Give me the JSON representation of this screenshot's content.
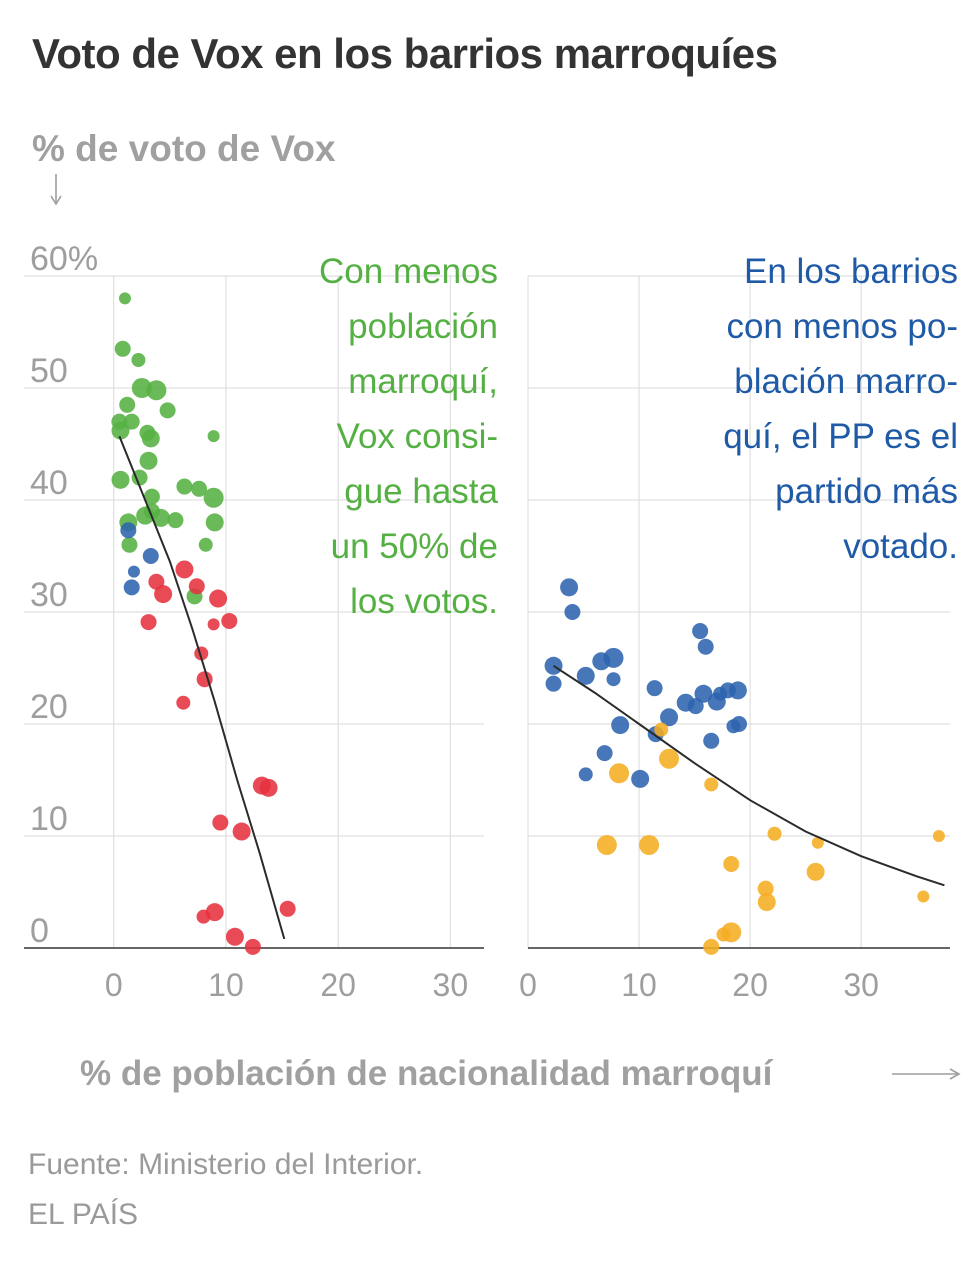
{
  "title": "Voto de Vox en los barrios marroquíes",
  "y_axis_title": "% de voto de Vox",
  "x_axis_title": "% de población de nacionalidad marroquí",
  "source": "Fuente: Ministerio del Interior.",
  "brand": "EL PAÍS",
  "colors": {
    "green": "#55b043",
    "red": "#e5323f",
    "blue": "#2d64ae",
    "orange": "#f5ad22",
    "grid": "#d9d9d9",
    "axis_text": "#9e9e9e",
    "trend": "#2b2b2b"
  },
  "annotations": {
    "left": "Con menos\npoblación\nmarroquí,\nVox consi-\ngue hasta\nun 50% de\nlos votos.",
    "right": "En los barrios\ncon menos po-\nblación marro-\nquí, el PP es el\npartido más\nvotado."
  },
  "chart_data": [
    {
      "type": "scatter",
      "panel": "left",
      "xlim": [
        -8,
        33
      ],
      "ylim": [
        0,
        60
      ],
      "x_ticks": [
        0,
        10,
        20,
        30
      ],
      "x_tick_labels": [
        "0",
        "10",
        "20",
        "30"
      ],
      "y_ticks": [
        0,
        10,
        20,
        30,
        40,
        50,
        60
      ],
      "y_tick_labels": [
        "0",
        "10",
        "20",
        "30",
        "40",
        "50",
        "60%"
      ],
      "series": [
        {
          "name": "green",
          "color": "#55b043",
          "points": [
            {
              "x": 1.0,
              "y": 58.0,
              "r": 6
            },
            {
              "x": 0.8,
              "y": 53.5,
              "r": 8
            },
            {
              "x": 2.2,
              "y": 52.5,
              "r": 7
            },
            {
              "x": 1.2,
              "y": 48.5,
              "r": 8
            },
            {
              "x": 2.5,
              "y": 50.0,
              "r": 10
            },
            {
              "x": 3.8,
              "y": 49.8,
              "r": 10
            },
            {
              "x": 4.8,
              "y": 48.0,
              "r": 8
            },
            {
              "x": 0.5,
              "y": 47.0,
              "r": 8
            },
            {
              "x": 1.6,
              "y": 47.0,
              "r": 8
            },
            {
              "x": 0.6,
              "y": 46.2,
              "r": 9
            },
            {
              "x": 3.0,
              "y": 46.0,
              "r": 8
            },
            {
              "x": 3.3,
              "y": 45.5,
              "r": 9
            },
            {
              "x": 8.9,
              "y": 45.7,
              "r": 6
            },
            {
              "x": 3.1,
              "y": 43.5,
              "r": 9
            },
            {
              "x": 0.6,
              "y": 41.8,
              "r": 9
            },
            {
              "x": 2.3,
              "y": 42.0,
              "r": 8
            },
            {
              "x": 6.3,
              "y": 41.2,
              "r": 8
            },
            {
              "x": 7.6,
              "y": 41.0,
              "r": 8
            },
            {
              "x": 8.9,
              "y": 40.2,
              "r": 10
            },
            {
              "x": 3.4,
              "y": 40.3,
              "r": 8
            },
            {
              "x": 3.4,
              "y": 39.0,
              "r": 8
            },
            {
              "x": 2.8,
              "y": 38.6,
              "r": 9
            },
            {
              "x": 4.2,
              "y": 38.4,
              "r": 9
            },
            {
              "x": 5.5,
              "y": 38.2,
              "r": 8
            },
            {
              "x": 1.3,
              "y": 38.0,
              "r": 9
            },
            {
              "x": 9.0,
              "y": 38.0,
              "r": 9
            },
            {
              "x": 1.4,
              "y": 36.0,
              "r": 8
            },
            {
              "x": 8.2,
              "y": 36.0,
              "r": 7
            },
            {
              "x": 7.2,
              "y": 31.4,
              "r": 8
            }
          ]
        },
        {
          "name": "blue",
          "color": "#2d64ae",
          "points": [
            {
              "x": 1.3,
              "y": 37.3,
              "r": 8
            },
            {
              "x": 3.3,
              "y": 35.0,
              "r": 8
            },
            {
              "x": 1.8,
              "y": 33.6,
              "r": 6
            },
            {
              "x": 1.6,
              "y": 32.2,
              "r": 8
            }
          ]
        },
        {
          "name": "red",
          "color": "#e5323f",
          "points": [
            {
              "x": 6.3,
              "y": 33.8,
              "r": 9
            },
            {
              "x": 3.8,
              "y": 32.7,
              "r": 8
            },
            {
              "x": 7.4,
              "y": 32.3,
              "r": 8
            },
            {
              "x": 4.4,
              "y": 31.6,
              "r": 9
            },
            {
              "x": 9.3,
              "y": 31.2,
              "r": 9
            },
            {
              "x": 3.1,
              "y": 29.1,
              "r": 8
            },
            {
              "x": 8.9,
              "y": 28.9,
              "r": 6
            },
            {
              "x": 10.3,
              "y": 29.2,
              "r": 8
            },
            {
              "x": 7.8,
              "y": 26.3,
              "r": 7
            },
            {
              "x": 8.1,
              "y": 24.0,
              "r": 8
            },
            {
              "x": 6.2,
              "y": 21.9,
              "r": 7
            },
            {
              "x": 13.2,
              "y": 14.5,
              "r": 9
            },
            {
              "x": 13.8,
              "y": 14.3,
              "r": 9
            },
            {
              "x": 9.5,
              "y": 11.2,
              "r": 8
            },
            {
              "x": 11.4,
              "y": 10.4,
              "r": 9
            },
            {
              "x": 15.5,
              "y": 3.5,
              "r": 8
            },
            {
              "x": 9.0,
              "y": 3.2,
              "r": 9
            },
            {
              "x": 8.0,
              "y": 2.8,
              "r": 7
            },
            {
              "x": 10.8,
              "y": 1.0,
              "r": 9
            },
            {
              "x": 12.4,
              "y": 0.1,
              "r": 8
            }
          ]
        }
      ],
      "trend": [
        {
          "x": 0.5,
          "y": 45.7
        },
        {
          "x": 3,
          "y": 39.5
        },
        {
          "x": 5,
          "y": 34.5
        },
        {
          "x": 7,
          "y": 28.5
        },
        {
          "x": 9,
          "y": 22.0
        },
        {
          "x": 11,
          "y": 15.0
        },
        {
          "x": 13,
          "y": 8.5
        },
        {
          "x": 15.2,
          "y": 0.8
        }
      ]
    },
    {
      "type": "scatter",
      "panel": "right",
      "xlim": [
        0,
        38
      ],
      "ylim": [
        0,
        60
      ],
      "x_ticks": [
        0,
        10,
        20,
        30
      ],
      "x_tick_labels": [
        "0",
        "10",
        "20",
        "30"
      ],
      "y_ticks": [
        0,
        10,
        20,
        30,
        40,
        50,
        60
      ],
      "y_tick_labels": [],
      "series": [
        {
          "name": "blue",
          "color": "#2d64ae",
          "points": [
            {
              "x": 3.7,
              "y": 32.2,
              "r": 9
            },
            {
              "x": 4.0,
              "y": 30.0,
              "r": 8
            },
            {
              "x": 15.5,
              "y": 28.3,
              "r": 8
            },
            {
              "x": 16.0,
              "y": 26.9,
              "r": 8
            },
            {
              "x": 2.3,
              "y": 25.2,
              "r": 9
            },
            {
              "x": 6.6,
              "y": 25.6,
              "r": 9
            },
            {
              "x": 7.7,
              "y": 25.9,
              "r": 10
            },
            {
              "x": 5.2,
              "y": 24.3,
              "r": 9
            },
            {
              "x": 7.7,
              "y": 24.0,
              "r": 7
            },
            {
              "x": 2.3,
              "y": 23.6,
              "r": 8
            },
            {
              "x": 11.4,
              "y": 23.2,
              "r": 8
            },
            {
              "x": 15.8,
              "y": 22.7,
              "r": 9
            },
            {
              "x": 17.3,
              "y": 22.7,
              "r": 7
            },
            {
              "x": 18.0,
              "y": 23.0,
              "r": 8
            },
            {
              "x": 18.9,
              "y": 23.0,
              "r": 9
            },
            {
              "x": 17.0,
              "y": 22.0,
              "r": 9
            },
            {
              "x": 14.2,
              "y": 21.9,
              "r": 9
            },
            {
              "x": 15.1,
              "y": 21.6,
              "r": 8
            },
            {
              "x": 12.7,
              "y": 20.6,
              "r": 9
            },
            {
              "x": 8.3,
              "y": 19.9,
              "r": 9
            },
            {
              "x": 18.5,
              "y": 19.8,
              "r": 7
            },
            {
              "x": 19.0,
              "y": 20.0,
              "r": 8
            },
            {
              "x": 11.5,
              "y": 19.1,
              "r": 8
            },
            {
              "x": 16.5,
              "y": 18.5,
              "r": 8
            },
            {
              "x": 6.9,
              "y": 17.4,
              "r": 8
            },
            {
              "x": 5.2,
              "y": 15.5,
              "r": 7
            },
            {
              "x": 10.1,
              "y": 15.1,
              "r": 9
            }
          ]
        },
        {
          "name": "orange",
          "color": "#f5ad22",
          "points": [
            {
              "x": 12.0,
              "y": 19.5,
              "r": 7
            },
            {
              "x": 12.7,
              "y": 16.9,
              "r": 10
            },
            {
              "x": 8.2,
              "y": 15.6,
              "r": 10
            },
            {
              "x": 16.5,
              "y": 14.6,
              "r": 7
            },
            {
              "x": 22.2,
              "y": 10.2,
              "r": 7
            },
            {
              "x": 37.0,
              "y": 10.0,
              "r": 6
            },
            {
              "x": 26.1,
              "y": 9.4,
              "r": 6
            },
            {
              "x": 7.1,
              "y": 9.2,
              "r": 10
            },
            {
              "x": 10.9,
              "y": 9.2,
              "r": 10
            },
            {
              "x": 18.3,
              "y": 7.5,
              "r": 8
            },
            {
              "x": 25.9,
              "y": 6.8,
              "r": 9
            },
            {
              "x": 21.4,
              "y": 5.3,
              "r": 8
            },
            {
              "x": 35.6,
              "y": 4.6,
              "r": 6
            },
            {
              "x": 21.5,
              "y": 4.1,
              "r": 9
            },
            {
              "x": 17.6,
              "y": 1.2,
              "r": 7
            },
            {
              "x": 18.3,
              "y": 1.4,
              "r": 10
            },
            {
              "x": 16.5,
              "y": 0.1,
              "r": 8
            }
          ]
        }
      ],
      "trend": [
        {
          "x": 2.3,
          "y": 25.2
        },
        {
          "x": 6,
          "y": 22.8
        },
        {
          "x": 10,
          "y": 20.0
        },
        {
          "x": 15,
          "y": 16.5
        },
        {
          "x": 20,
          "y": 13.2
        },
        {
          "x": 25,
          "y": 10.4
        },
        {
          "x": 30,
          "y": 8.2
        },
        {
          "x": 35,
          "y": 6.4
        },
        {
          "x": 37.5,
          "y": 5.6
        }
      ]
    }
  ]
}
